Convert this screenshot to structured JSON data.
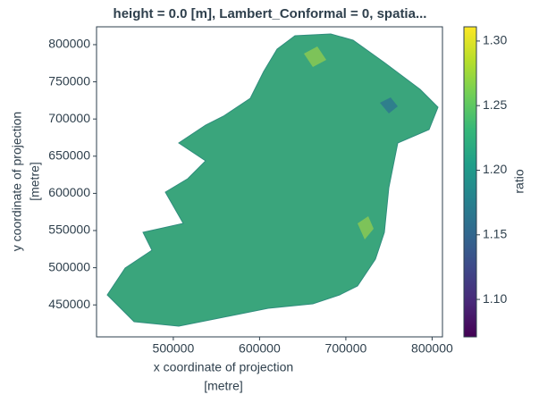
{
  "chart_data": {
    "type": "raster",
    "title": "height = 0.0 [m], Lambert_Conformal = 0, spatia...",
    "xlabel": [
      "x coordinate of projection",
      "[metre]"
    ],
    "ylabel": [
      "y coordinate of projection",
      "[metre]"
    ],
    "xlim": [
      411000,
      812000
    ],
    "xticks": [
      500000,
      600000,
      700000,
      800000
    ],
    "ylim": [
      407000,
      824000
    ],
    "yticks": [
      450000,
      500000,
      550000,
      600000,
      650000,
      700000,
      750000,
      800000
    ],
    "colorbar": {
      "label": "ratio",
      "colormap": "viridis",
      "lim": [
        1.071,
        1.311
      ],
      "ticks": [
        {
          "value": 1.1,
          "label": "1.10"
        },
        1.15,
        {
          "value": 1.2,
          "label": "1.20"
        },
        1.25,
        {
          "value": 1.3,
          "label": "1.30"
        }
      ]
    },
    "fill_color": "#3aa57c"
  }
}
